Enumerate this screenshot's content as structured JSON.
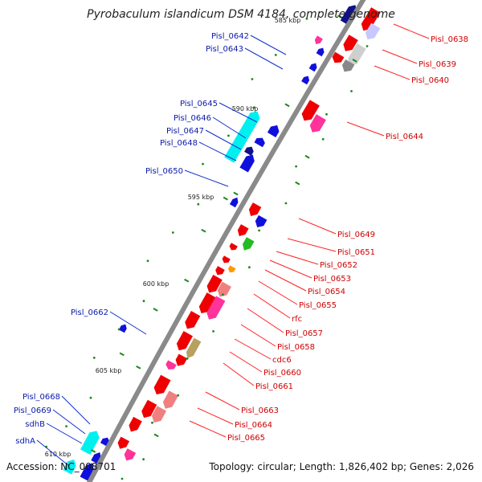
{
  "title": "Pyrobaculum islandicum DSM 4184, complete genome",
  "accession": "Accession: NC_008701",
  "summary": "Topology: circular; Length: 1,826,402 bp; Genes: 2,026",
  "colors": {
    "backbone": "#8a8a8a",
    "red": "#ee0000",
    "pink": "#ff3399",
    "salmon": "#f08080",
    "blue": "#1010dd",
    "navy": "#10108a",
    "cyan": "#00f0f0",
    "green": "#22bb22",
    "orange": "#ff9900",
    "gray": "#888888",
    "olive": "#b8a060",
    "pale": "#c8c8ff"
  },
  "ticks": [
    {
      "label": "585 kbp"
    },
    {
      "label": "590 kbp"
    },
    {
      "label": "595 kbp"
    },
    {
      "label": "600 kbp"
    },
    {
      "label": "605 kbp"
    },
    {
      "label": "610 kbp"
    }
  ],
  "right_labels": [
    {
      "text": "Pisl_0638"
    },
    {
      "text": "Pisl_0639"
    },
    {
      "text": "Pisl_0640"
    },
    {
      "text": "Pisl_0644"
    },
    {
      "text": "Pisl_0649"
    },
    {
      "text": "Pisl_0651"
    },
    {
      "text": "Pisl_0652"
    },
    {
      "text": "Pisl_0653"
    },
    {
      "text": "Pisl_0654"
    },
    {
      "text": "Pisl_0655"
    },
    {
      "text": "rfc"
    },
    {
      "text": "Pisl_0657"
    },
    {
      "text": "Pisl_0658"
    },
    {
      "text": "cdc6"
    },
    {
      "text": "Pisl_0660"
    },
    {
      "text": "Pisl_0661"
    },
    {
      "text": "Pisl_0663"
    },
    {
      "text": "Pisl_0664"
    },
    {
      "text": "Pisl_0665"
    }
  ],
  "left_labels": [
    {
      "text": "Pisl_0642"
    },
    {
      "text": "Pisl_0643"
    },
    {
      "text": "Pisl_0645"
    },
    {
      "text": "Pisl_0646"
    },
    {
      "text": "Pisl_0647"
    },
    {
      "text": "Pisl_0648"
    },
    {
      "text": "Pisl_0650"
    },
    {
      "text": "Pisl_0662"
    },
    {
      "text": "Pisl_0668"
    },
    {
      "text": "Pisl_0669"
    },
    {
      "text": "sdhB"
    },
    {
      "text": "sdhA"
    }
  ]
}
